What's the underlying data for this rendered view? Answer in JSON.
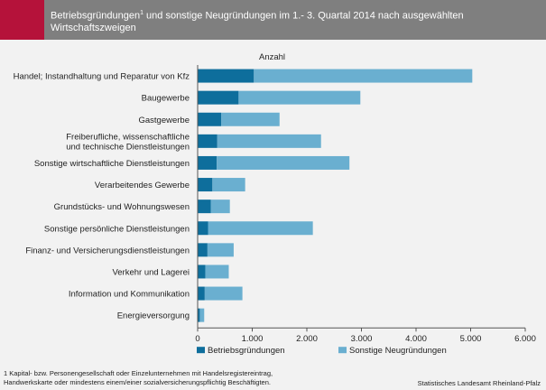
{
  "header": {
    "title_part1": "Betriebsgründungen",
    "title_sup": "1",
    "title_part2": " und sonstige Neugründungen im  1.- 3. Quartal 2014  nach ausgewählten Wirtschaftszweigen"
  },
  "colors": {
    "header_bg": "#7f7f7f",
    "accent": "#b5123a",
    "series1": "#0e6e9c",
    "series2": "#6aafd0"
  },
  "chart_data": {
    "type": "bar",
    "orientation": "horizontal",
    "stacked": true,
    "ylabel": "Anzahl",
    "categories": [
      [
        "Handel; Instandhaltung und Reparatur von Kfz"
      ],
      [
        "Baugewerbe"
      ],
      [
        "Gastgewerbe"
      ],
      [
        "Freiberufliche, wissenschaftliche",
        "und technische Dienstleistungen"
      ],
      [
        "Sonstige wirtschaftliche Dienstleistungen"
      ],
      [
        "Verarbeitendes Gewerbe"
      ],
      [
        "Grundstücks- und Wohnungswesen"
      ],
      [
        "Sonstige persönliche Dienstleistungen"
      ],
      [
        "Finanz- und Versicherungsdienstleistungen"
      ],
      [
        "Verkehr und Lagerei"
      ],
      [
        "Information und Kommunikation"
      ],
      [
        "Energieversorgung"
      ]
    ],
    "series": [
      {
        "name": "Betriebsgründungen",
        "values": [
          1030,
          750,
          430,
          360,
          350,
          270,
          240,
          190,
          180,
          140,
          130,
          40
        ]
      },
      {
        "name": "Sonstige Neugründungen",
        "values": [
          4000,
          2230,
          1070,
          1900,
          2430,
          600,
          350,
          1920,
          480,
          430,
          690,
          80
        ]
      }
    ],
    "xlim": [
      0,
      6000
    ],
    "ticks": [
      0,
      1000,
      2000,
      3000,
      4000,
      5000,
      6000
    ],
    "tick_labels": [
      "0",
      "1.000",
      "2.000",
      "3.000",
      "4.000",
      "5.000",
      "6.000"
    ],
    "grid": false,
    "legend_position": "bottom"
  },
  "footnote": {
    "line1": "1 Kapital- bzw. Personengesellschaft oder Einzelunternehmen mit  Handelsregistereintrag,",
    "line2": "Handwerkskarte oder mindestens einem/einer sozialversicherungspflichtig Beschäftigten."
  },
  "source": "Statistisches Landesamt Rheinland-Pfalz"
}
